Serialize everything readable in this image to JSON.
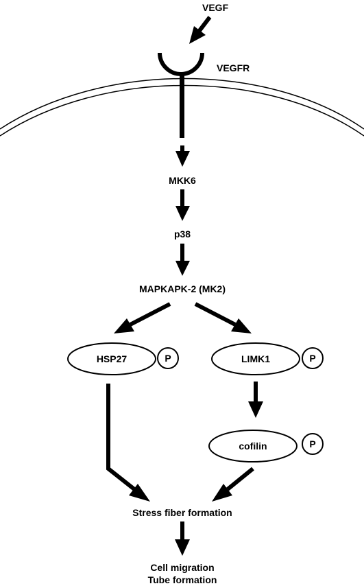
{
  "nodes": {
    "vegf": "VEGF",
    "vegfr": "VEGFR",
    "mkk6": "MKK6",
    "p38": "p38",
    "mk2": "MAPKAPK-2 (MK2)",
    "hsp27": "HSP27",
    "limk1": "LIMK1",
    "cofilin": "cofilin",
    "phospho": "P",
    "stress_fiber": "Stress fiber formation",
    "outcome_1": "Cell migration",
    "outcome_2": "Tube formation"
  }
}
